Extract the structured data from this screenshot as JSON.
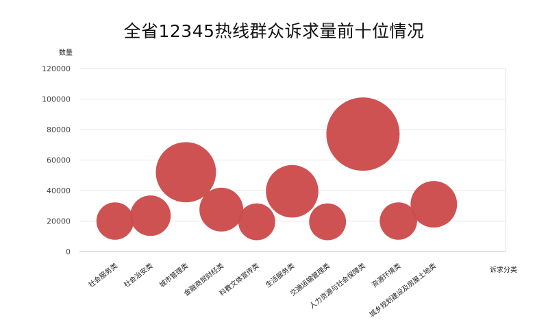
{
  "chart_data": {
    "type": "bubble",
    "title": "全省12345热线群众诉求量前十位情况",
    "ylabel": "数量",
    "xlabel": "诉求分类",
    "ylim": [
      0,
      120000
    ],
    "yticks": [
      "0",
      "20000",
      "40000",
      "60000",
      "80000",
      "100000",
      "120000"
    ],
    "grid": true,
    "legend": "none",
    "color": "#CD4B4B",
    "categories": [
      "社会服务类",
      "社会治安类",
      "城市管理类",
      "金融商贸财经类",
      "科教文体宣传类",
      "生活服务类",
      "交通运输管理类",
      "人力资源与社会保障类",
      "资源环境类",
      "城乡规划建设及房屋土地类"
    ],
    "values": [
      20000,
      23500,
      52000,
      27500,
      19500,
      39500,
      19500,
      77000,
      20000,
      31000
    ]
  }
}
